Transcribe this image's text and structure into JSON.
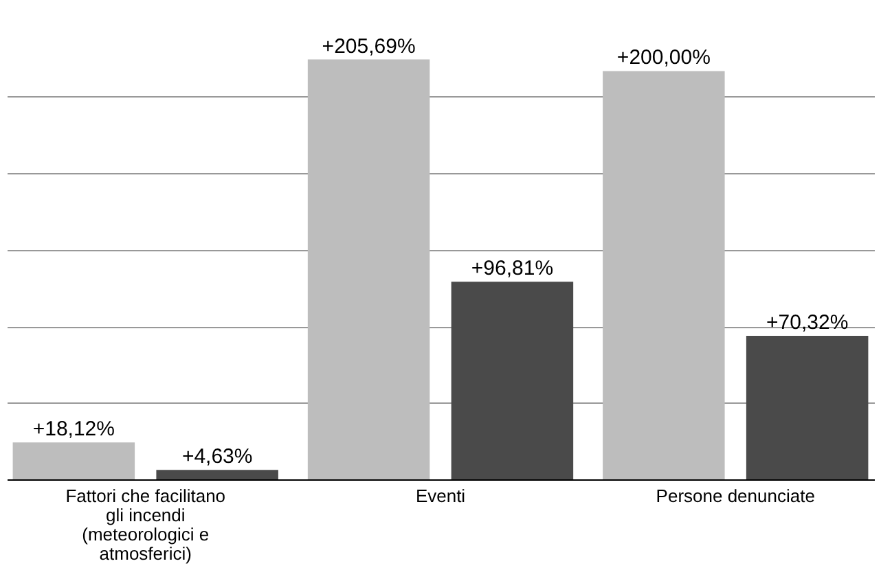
{
  "chart_data": {
    "type": "bar",
    "categories": [
      "Fattori che facilitano gli incendi (meteorologici e atmosferici)",
      "Eventi",
      "Persone denunciate"
    ],
    "series": [
      {
        "color": "#bdbdbd",
        "values": [
          18.12,
          205.69,
          200.0
        ],
        "value_labels": [
          "+18,12%",
          "+205,69%",
          "+200,00%"
        ]
      },
      {
        "color": "#4a4a4a",
        "values": [
          4.63,
          96.81,
          70.32
        ],
        "value_labels": [
          "+4,63%",
          "+96,81%",
          "+70,32%"
        ]
      }
    ],
    "yticks": [
      {
        "value": 37.5,
        "label": null
      },
      {
        "value": 75,
        "label": null
      },
      {
        "value": 112.5,
        "label": null
      },
      {
        "value": 150,
        "label": null
      },
      {
        "value": 187.5,
        "label": null
      }
    ],
    "grid": "y",
    "legend": false,
    "tick_labels": "x"
  }
}
